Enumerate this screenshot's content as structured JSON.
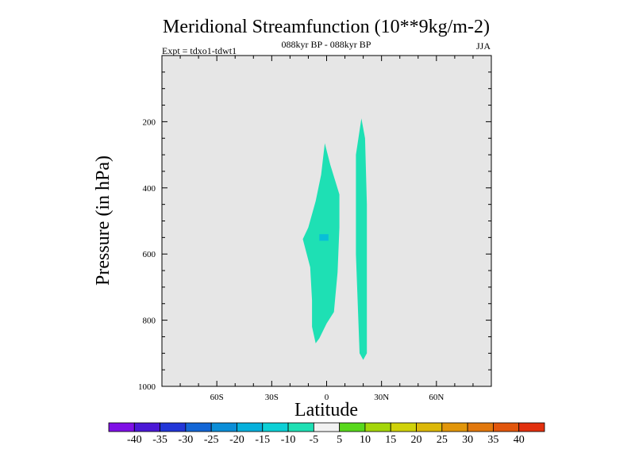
{
  "chart_data": {
    "type": "contour",
    "title": "Meridional Streamfunction (10**9kg/m-2)",
    "subtitle": "088kyr BP - 088kyr BP",
    "left_annotation": "Expt = tdxo1-tdwt1",
    "right_annotation": "JJA",
    "xlabel": "Latitude",
    "ylabel": "Pressure (in hPa)",
    "xlim": [
      -90,
      90
    ],
    "ylim": [
      0,
      1000
    ],
    "y_reversed": true,
    "x_ticks": [
      {
        "value": -60,
        "label": "60S"
      },
      {
        "value": -30,
        "label": "30S"
      },
      {
        "value": 0,
        "label": "0"
      },
      {
        "value": 30,
        "label": "30N"
      },
      {
        "value": 60,
        "label": "60N"
      }
    ],
    "y_ticks": [
      {
        "value": 200,
        "label": "200"
      },
      {
        "value": 400,
        "label": "400"
      },
      {
        "value": 600,
        "label": "600"
      },
      {
        "value": 800,
        "label": "800"
      },
      {
        "value": 1000,
        "label": "1000"
      }
    ],
    "background_color": "#e6e6e6",
    "shaded_regions": [
      {
        "level": "-10 to -5",
        "color": "#1ee0b4",
        "polygon": [
          [
            -1,
            265
          ],
          [
            2,
            330
          ],
          [
            7,
            420
          ],
          [
            7,
            520
          ],
          [
            6,
            655
          ],
          [
            4,
            775
          ],
          [
            0,
            810
          ],
          [
            -4,
            855
          ],
          [
            -6,
            870
          ],
          [
            -8,
            820
          ],
          [
            -8,
            740
          ],
          [
            -9,
            640
          ],
          [
            -13,
            555
          ],
          [
            -10,
            520
          ],
          [
            -6,
            440
          ],
          [
            -3,
            360
          ]
        ]
      },
      {
        "level": "-10 to -5",
        "color": "#1ee0b4",
        "polygon": [
          [
            19,
            190
          ],
          [
            21,
            250
          ],
          [
            22,
            450
          ],
          [
            22,
            900
          ],
          [
            20,
            920
          ],
          [
            18,
            900
          ],
          [
            16,
            600
          ],
          [
            16,
            300
          ]
        ]
      },
      {
        "level": "-15 to -10",
        "color": "#08bed8",
        "polygon": [
          [
            -4,
            540
          ],
          [
            1,
            540
          ],
          [
            1,
            560
          ],
          [
            -4,
            560
          ]
        ]
      }
    ],
    "colorbar": {
      "colors": [
        "#7f10e6",
        "#4b18d6",
        "#2236d8",
        "#1366d6",
        "#0b8ed8",
        "#06b0dc",
        "#0cd0d6",
        "#1ee0b4",
        "#f2f2f2",
        "#58d81c",
        "#a4d60a",
        "#d0d20a",
        "#dcb808",
        "#e2960a",
        "#e2780c",
        "#e2560c",
        "#e2300e"
      ],
      "labels": [
        "-40",
        "-35",
        "-30",
        "-25",
        "-20",
        "-15",
        "-10",
        "-5",
        "5",
        "10",
        "15",
        "20",
        "25",
        "30",
        "35",
        "40"
      ]
    }
  }
}
